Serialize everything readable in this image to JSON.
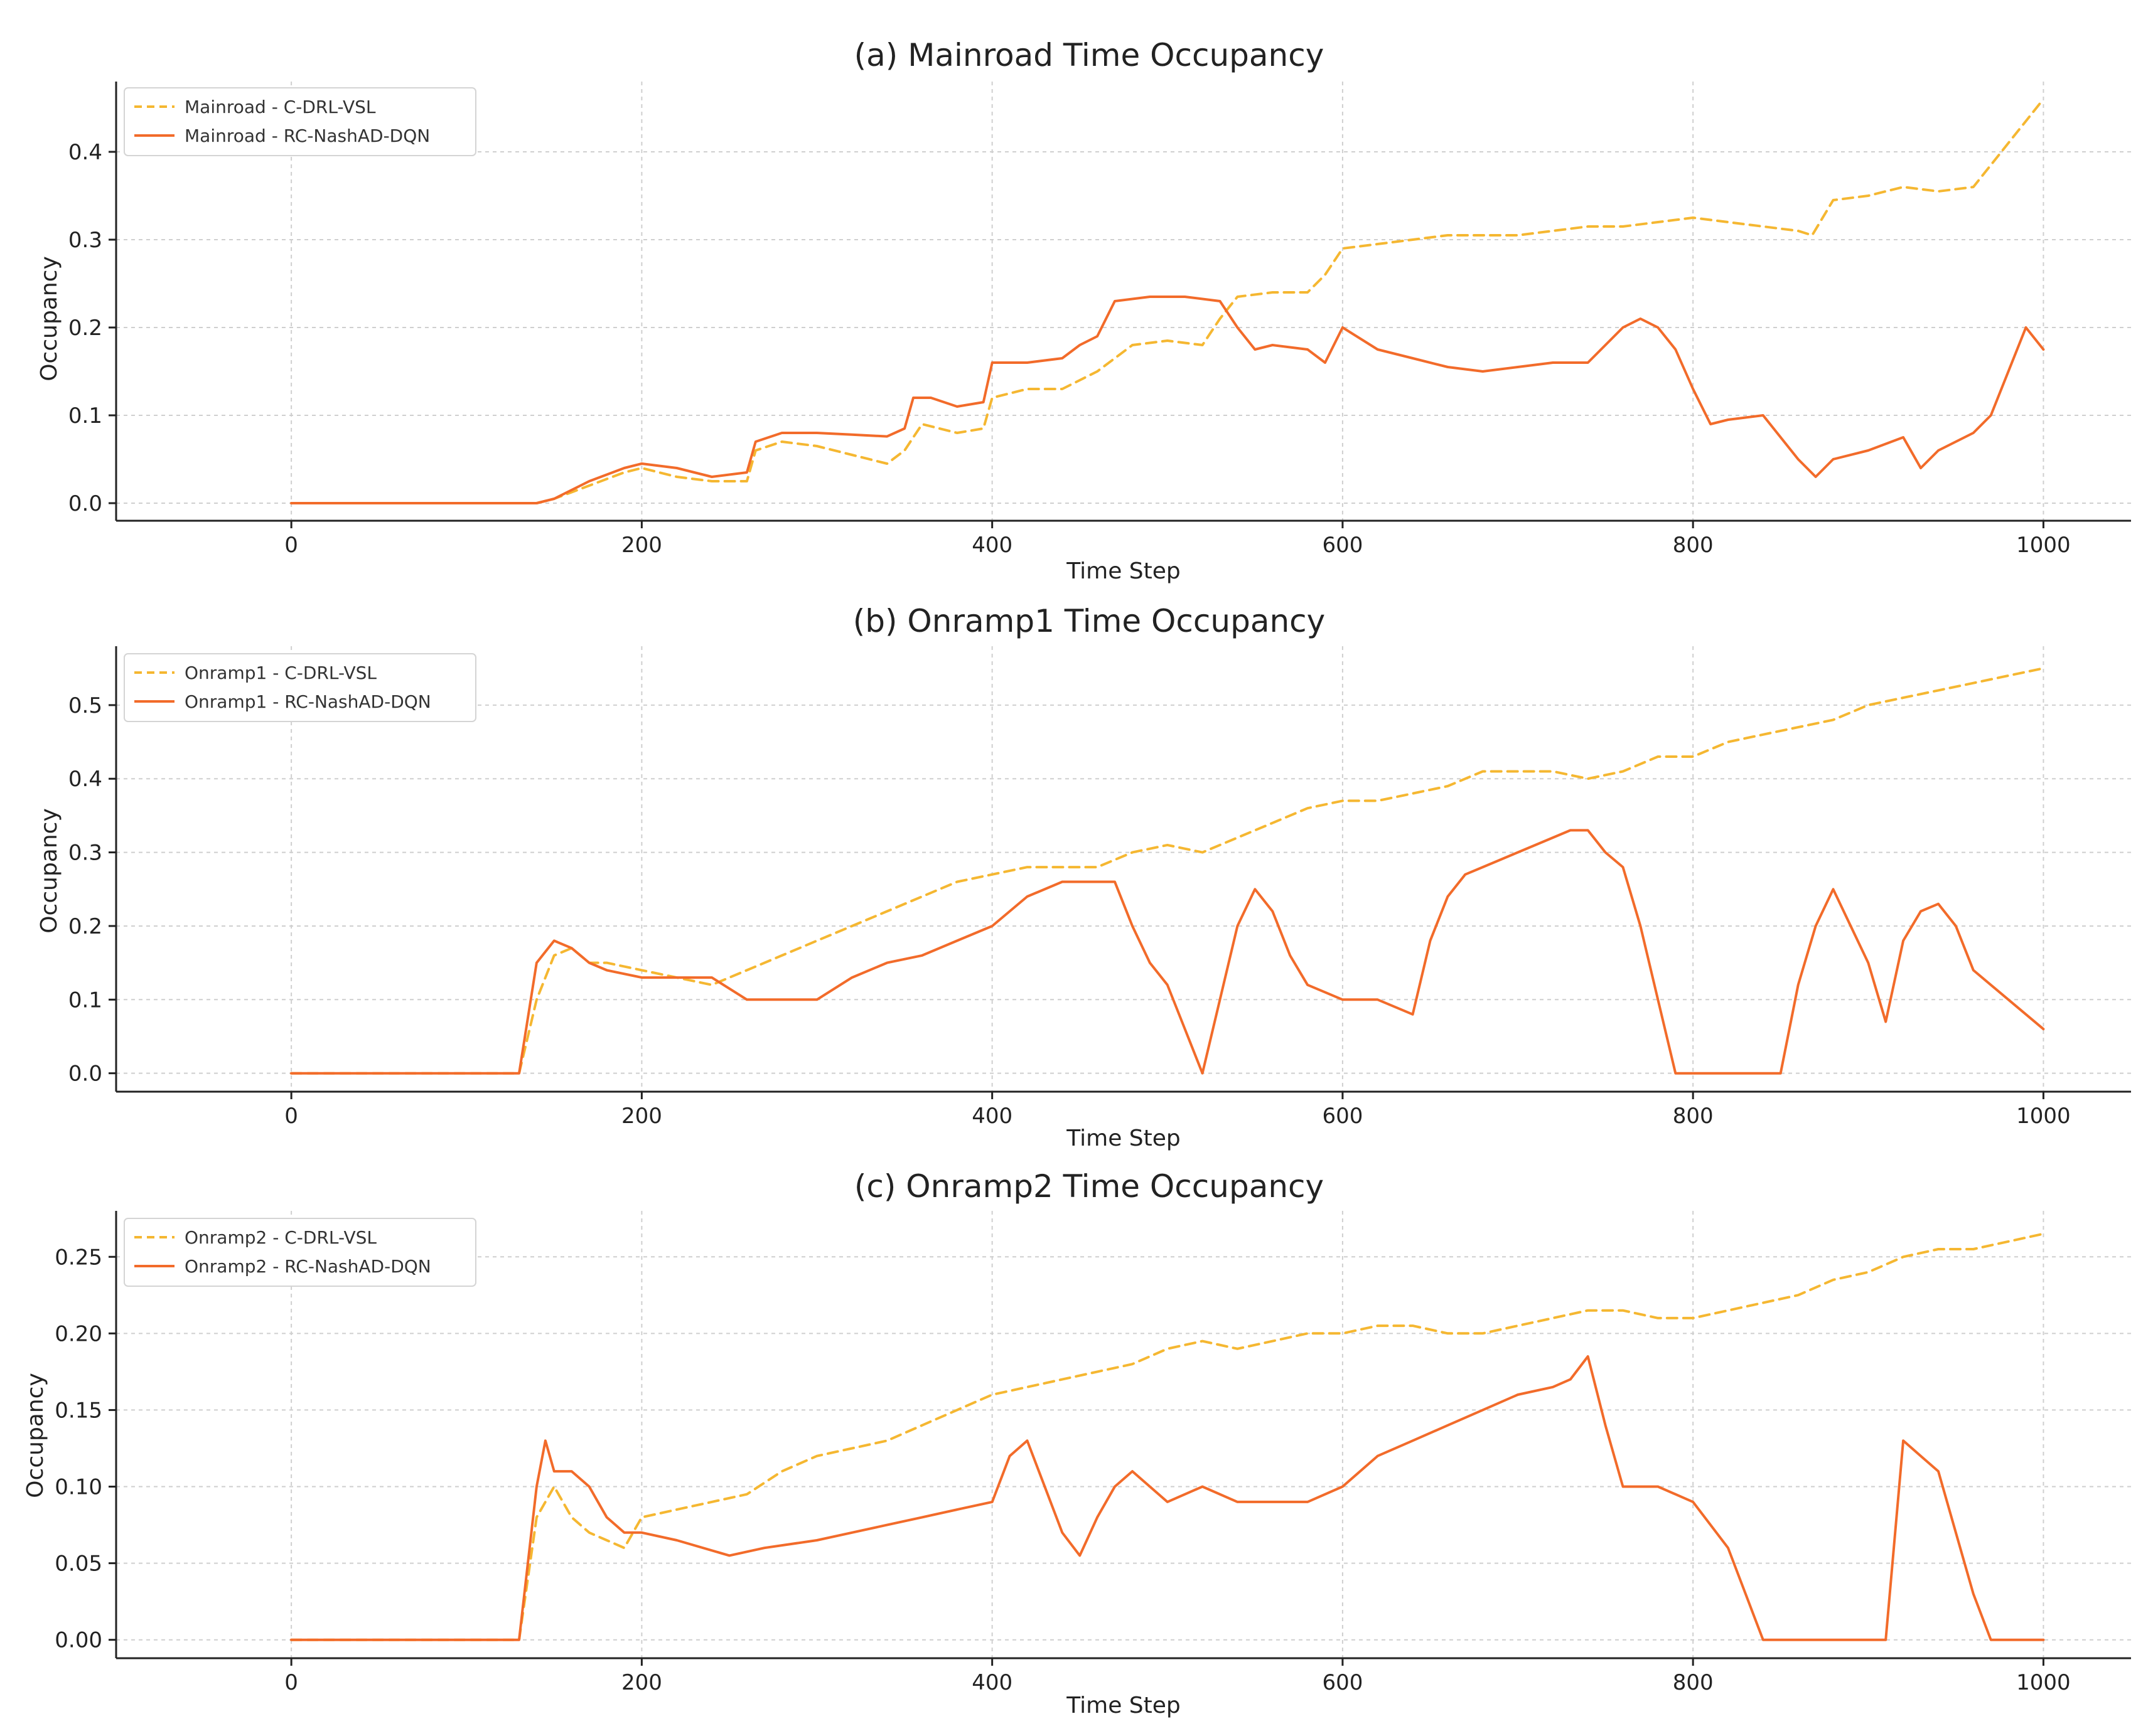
{
  "colors": {
    "cdrl": "#F5B731",
    "rcnash": "#F26B2A"
  },
  "chart_data": [
    {
      "type": "line",
      "title": "(a) Mainroad Time Occupancy",
      "xlabel": "Time Step",
      "ylabel": "Occupancy",
      "xlim": [
        -100,
        1050
      ],
      "ylim": [
        -0.02,
        0.48
      ],
      "xticks": [
        0,
        200,
        400,
        600,
        800,
        1000
      ],
      "xtick_labels": [
        "0",
        "200",
        "400",
        "600",
        "800",
        "1000"
      ],
      "yticks": [
        0.0,
        0.1,
        0.2,
        0.3,
        0.4
      ],
      "ytick_labels": [
        "0.0",
        "0.1",
        "0.2",
        "0.3",
        "0.4"
      ],
      "grid": true,
      "legend_position": "top-left",
      "series": [
        {
          "name": "Mainroad - C-DRL-VSL",
          "style": "dashed",
          "color_key": "cdrl",
          "x": [
            0,
            140,
            150,
            170,
            190,
            200,
            220,
            240,
            260,
            265,
            280,
            300,
            320,
            340,
            350,
            360,
            380,
            395,
            400,
            420,
            440,
            450,
            460,
            480,
            500,
            520,
            530,
            540,
            560,
            580,
            590,
            600,
            620,
            640,
            660,
            680,
            700,
            720,
            740,
            760,
            780,
            800,
            820,
            840,
            860,
            868,
            880,
            900,
            920,
            940,
            960,
            980,
            1000
          ],
          "y": [
            0.0,
            0.0,
            0.005,
            0.02,
            0.035,
            0.04,
            0.03,
            0.025,
            0.025,
            0.06,
            0.07,
            0.065,
            0.055,
            0.045,
            0.06,
            0.09,
            0.08,
            0.085,
            0.12,
            0.13,
            0.13,
            0.14,
            0.15,
            0.18,
            0.185,
            0.18,
            0.21,
            0.235,
            0.24,
            0.24,
            0.26,
            0.29,
            0.295,
            0.3,
            0.305,
            0.305,
            0.305,
            0.31,
            0.315,
            0.315,
            0.32,
            0.325,
            0.32,
            0.315,
            0.31,
            0.305,
            0.345,
            0.35,
            0.36,
            0.355,
            0.36,
            0.41,
            0.46
          ]
        },
        {
          "name": "Mainroad - RC-NashAD-DQN",
          "style": "solid",
          "color_key": "rcnash",
          "x": [
            0,
            140,
            150,
            170,
            190,
            200,
            220,
            240,
            260,
            265,
            280,
            300,
            320,
            340,
            350,
            355,
            365,
            380,
            395,
            400,
            420,
            440,
            450,
            460,
            470,
            490,
            510,
            530,
            540,
            550,
            560,
            580,
            590,
            600,
            620,
            640,
            660,
            680,
            700,
            720,
            740,
            760,
            770,
            780,
            790,
            800,
            810,
            820,
            840,
            860,
            870,
            880,
            900,
            920,
            930,
            940,
            960,
            970,
            980,
            990,
            1000
          ],
          "y": [
            0.0,
            0.0,
            0.005,
            0.025,
            0.04,
            0.045,
            0.04,
            0.03,
            0.035,
            0.07,
            0.08,
            0.08,
            0.078,
            0.076,
            0.085,
            0.12,
            0.12,
            0.11,
            0.115,
            0.16,
            0.16,
            0.165,
            0.18,
            0.19,
            0.23,
            0.235,
            0.235,
            0.23,
            0.2,
            0.175,
            0.18,
            0.175,
            0.16,
            0.2,
            0.175,
            0.165,
            0.155,
            0.15,
            0.155,
            0.16,
            0.16,
            0.2,
            0.21,
            0.2,
            0.175,
            0.13,
            0.09,
            0.095,
            0.1,
            0.05,
            0.03,
            0.05,
            0.06,
            0.075,
            0.04,
            0.06,
            0.08,
            0.1,
            0.15,
            0.2,
            0.175
          ]
        }
      ]
    },
    {
      "type": "line",
      "title": "(b) Onramp1 Time Occupancy",
      "xlabel": "Time Step",
      "ylabel": "Occupancy",
      "xlim": [
        -100,
        1050
      ],
      "ylim": [
        -0.025,
        0.58
      ],
      "xticks": [
        0,
        200,
        400,
        600,
        800,
        1000
      ],
      "xtick_labels": [
        "0",
        "200",
        "400",
        "600",
        "800",
        "1000"
      ],
      "yticks": [
        0.0,
        0.1,
        0.2,
        0.3,
        0.4,
        0.5
      ],
      "ytick_labels": [
        "0.0",
        "0.1",
        "0.2",
        "0.3",
        "0.4",
        "0.5"
      ],
      "grid": true,
      "legend_position": "top-left",
      "series": [
        {
          "name": "Onramp1 - C-DRL-VSL",
          "style": "dashed",
          "color_key": "cdrl",
          "x": [
            0,
            130,
            140,
            150,
            160,
            170,
            180,
            200,
            220,
            240,
            260,
            280,
            300,
            320,
            340,
            360,
            380,
            400,
            420,
            440,
            460,
            480,
            500,
            520,
            540,
            560,
            580,
            600,
            620,
            640,
            660,
            680,
            700,
            720,
            740,
            760,
            780,
            800,
            820,
            840,
            860,
            880,
            900,
            920,
            940,
            960,
            980,
            1000
          ],
          "y": [
            0.0,
            0.0,
            0.1,
            0.16,
            0.17,
            0.15,
            0.15,
            0.14,
            0.13,
            0.12,
            0.14,
            0.16,
            0.18,
            0.2,
            0.22,
            0.24,
            0.26,
            0.27,
            0.28,
            0.28,
            0.28,
            0.3,
            0.31,
            0.3,
            0.32,
            0.34,
            0.36,
            0.37,
            0.37,
            0.38,
            0.39,
            0.41,
            0.41,
            0.41,
            0.4,
            0.41,
            0.43,
            0.43,
            0.45,
            0.46,
            0.47,
            0.48,
            0.5,
            0.51,
            0.52,
            0.53,
            0.54,
            0.55
          ]
        },
        {
          "name": "Onramp1 - RC-NashAD-DQN",
          "style": "solid",
          "color_key": "rcnash",
          "x": [
            0,
            130,
            140,
            150,
            160,
            170,
            180,
            200,
            240,
            260,
            300,
            320,
            340,
            360,
            380,
            400,
            420,
            440,
            460,
            470,
            480,
            490,
            500,
            510,
            520,
            530,
            540,
            550,
            560,
            570,
            580,
            600,
            620,
            640,
            650,
            660,
            670,
            680,
            700,
            720,
            730,
            740,
            750,
            760,
            770,
            780,
            790,
            800,
            820,
            850,
            860,
            870,
            880,
            890,
            900,
            910,
            920,
            930,
            940,
            950,
            960,
            980,
            1000
          ],
          "y": [
            0.0,
            0.0,
            0.15,
            0.18,
            0.17,
            0.15,
            0.14,
            0.13,
            0.13,
            0.1,
            0.1,
            0.13,
            0.15,
            0.16,
            0.18,
            0.2,
            0.24,
            0.26,
            0.26,
            0.26,
            0.2,
            0.15,
            0.12,
            0.06,
            0.0,
            0.1,
            0.2,
            0.25,
            0.22,
            0.16,
            0.12,
            0.1,
            0.1,
            0.08,
            0.18,
            0.24,
            0.27,
            0.28,
            0.3,
            0.32,
            0.33,
            0.33,
            0.3,
            0.28,
            0.2,
            0.1,
            0.0,
            0.0,
            0.0,
            0.0,
            0.12,
            0.2,
            0.25,
            0.2,
            0.15,
            0.07,
            0.18,
            0.22,
            0.23,
            0.2,
            0.14,
            0.1,
            0.06
          ]
        }
      ]
    },
    {
      "type": "line",
      "title": "(c) Onramp2 Time Occupancy",
      "xlabel": "Time Step",
      "ylabel": "Occupancy",
      "xlim": [
        -100,
        1050
      ],
      "ylim": [
        -0.012,
        0.28
      ],
      "xticks": [
        0,
        200,
        400,
        600,
        800,
        1000
      ],
      "xtick_labels": [
        "0",
        "200",
        "400",
        "600",
        "800",
        "1000"
      ],
      "yticks": [
        0.0,
        0.05,
        0.1,
        0.15,
        0.2,
        0.25
      ],
      "ytick_labels": [
        "0.00",
        "0.05",
        "0.10",
        "0.15",
        "0.20",
        "0.25"
      ],
      "grid": true,
      "legend_position": "top-left",
      "series": [
        {
          "name": "Onramp2 - C-DRL-VSL",
          "style": "dashed",
          "color_key": "cdrl",
          "x": [
            0,
            130,
            140,
            150,
            160,
            170,
            180,
            190,
            200,
            220,
            240,
            260,
            280,
            300,
            320,
            340,
            360,
            380,
            400,
            420,
            440,
            460,
            480,
            500,
            520,
            540,
            560,
            580,
            600,
            620,
            640,
            660,
            680,
            700,
            720,
            740,
            760,
            780,
            800,
            820,
            840,
            860,
            880,
            900,
            920,
            940,
            960,
            980,
            1000
          ],
          "y": [
            0.0,
            0.0,
            0.08,
            0.1,
            0.08,
            0.07,
            0.065,
            0.06,
            0.08,
            0.085,
            0.09,
            0.095,
            0.11,
            0.12,
            0.125,
            0.13,
            0.14,
            0.15,
            0.16,
            0.165,
            0.17,
            0.175,
            0.18,
            0.19,
            0.195,
            0.19,
            0.195,
            0.2,
            0.2,
            0.205,
            0.205,
            0.2,
            0.2,
            0.205,
            0.21,
            0.215,
            0.215,
            0.21,
            0.21,
            0.215,
            0.22,
            0.225,
            0.235,
            0.24,
            0.25,
            0.255,
            0.255,
            0.26,
            0.265
          ]
        },
        {
          "name": "Onramp2 - RC-NashAD-DQN",
          "style": "solid",
          "color_key": "rcnash",
          "x": [
            0,
            130,
            140,
            145,
            150,
            160,
            170,
            180,
            190,
            200,
            220,
            250,
            270,
            300,
            320,
            340,
            360,
            380,
            400,
            410,
            420,
            430,
            440,
            450,
            460,
            470,
            480,
            490,
            500,
            520,
            540,
            560,
            580,
            600,
            620,
            640,
            660,
            680,
            700,
            720,
            730,
            740,
            750,
            760,
            780,
            800,
            820,
            830,
            840,
            900,
            910,
            920,
            930,
            940,
            950,
            960,
            970,
            1000
          ],
          "y": [
            0.0,
            0.0,
            0.1,
            0.13,
            0.11,
            0.11,
            0.1,
            0.08,
            0.07,
            0.07,
            0.065,
            0.055,
            0.06,
            0.065,
            0.07,
            0.075,
            0.08,
            0.085,
            0.09,
            0.12,
            0.13,
            0.1,
            0.07,
            0.055,
            0.08,
            0.1,
            0.11,
            0.1,
            0.09,
            0.1,
            0.09,
            0.09,
            0.09,
            0.1,
            0.12,
            0.13,
            0.14,
            0.15,
            0.16,
            0.165,
            0.17,
            0.185,
            0.14,
            0.1,
            0.1,
            0.09,
            0.06,
            0.03,
            0.0,
            0.0,
            0.0,
            0.13,
            0.12,
            0.11,
            0.07,
            0.03,
            0.0,
            0.0
          ]
        }
      ]
    }
  ]
}
